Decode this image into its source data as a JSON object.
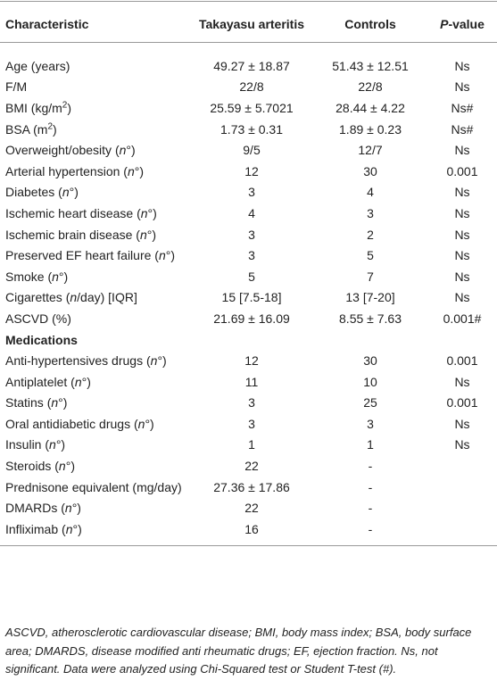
{
  "table": {
    "header": [
      [
        "Characteristic"
      ],
      [
        "Takayasu arteritis"
      ],
      [
        "Controls"
      ],
      [
        {
          "italic": "P"
        },
        "-value"
      ]
    ],
    "rows": [
      {
        "label": [
          "Age (years)"
        ],
        "ta": "49.27 ± 18.87",
        "controls": "51.43 ± 12.51",
        "p": "Ns"
      },
      {
        "label": [
          "F/M"
        ],
        "ta": "22/8",
        "controls": "22/8",
        "p": "Ns"
      },
      {
        "label": [
          "BMI (kg/m",
          {
            "sup": "2"
          },
          ")"
        ],
        "ta": "25.59 ± 5.7021",
        "controls": "28.44 ± 4.22",
        "p": "Ns#"
      },
      {
        "label": [
          "BSA (m",
          {
            "sup": "2"
          },
          ")"
        ],
        "ta": "1.73 ± 0.31",
        "controls": "1.89 ± 0.23",
        "p": "Ns#"
      },
      {
        "label": [
          "Overweight/obesity (",
          {
            "italic": "n"
          },
          "°)"
        ],
        "ta": "9/5",
        "controls": "12/7",
        "p": "Ns"
      },
      {
        "label": [
          "Arterial hypertension (",
          {
            "italic": "n"
          },
          "°)"
        ],
        "ta": "12",
        "controls": "30",
        "p": "0.001"
      },
      {
        "label": [
          "Diabetes (",
          {
            "italic": "n"
          },
          "°)"
        ],
        "ta": "3",
        "controls": "4",
        "p": "Ns"
      },
      {
        "label": [
          "Ischemic heart disease (",
          {
            "italic": "n"
          },
          "°)"
        ],
        "ta": "4",
        "controls": "3",
        "p": "Ns"
      },
      {
        "label": [
          "Ischemic brain disease (",
          {
            "italic": "n"
          },
          "°)"
        ],
        "ta": "3",
        "controls": "2",
        "p": "Ns"
      },
      {
        "label": [
          "Preserved EF heart failure (",
          {
            "italic": "n"
          },
          "°)"
        ],
        "ta": "3",
        "controls": "5",
        "p": "Ns"
      },
      {
        "label": [
          "Smoke (",
          {
            "italic": "n"
          },
          "°)"
        ],
        "ta": "5",
        "controls": "7",
        "p": "Ns"
      },
      {
        "label": [
          "Cigarettes (",
          {
            "italic": "n"
          },
          "/day) [IQR]"
        ],
        "ta": "15 [7.5-18]",
        "controls": "13 [7-20]",
        "p": "Ns"
      },
      {
        "label": [
          "ASCVD (%)"
        ],
        "ta": "21.69 ± 16.09",
        "controls": "8.55 ± 7.63",
        "p": "0.001#"
      },
      {
        "section": "Medications"
      },
      {
        "label": [
          "Anti-hypertensives drugs (",
          {
            "italic": "n"
          },
          "°)"
        ],
        "ta": "12",
        "controls": "30",
        "p": "0.001"
      },
      {
        "label": [
          "Antiplatelet (",
          {
            "italic": "n"
          },
          "°)"
        ],
        "ta": "11",
        "controls": "10",
        "p": "Ns"
      },
      {
        "label": [
          "Statins (",
          {
            "italic": "n"
          },
          "°)"
        ],
        "ta": "3",
        "controls": "25",
        "p": "0.001"
      },
      {
        "label": [
          "Oral antidiabetic drugs (",
          {
            "italic": "n"
          },
          "°)"
        ],
        "ta": "3",
        "controls": "3",
        "p": "Ns"
      },
      {
        "label": [
          "Insulin (",
          {
            "italic": "n"
          },
          "°)"
        ],
        "ta": "1",
        "controls": "1",
        "p": "Ns"
      },
      {
        "label": [
          "Steroids (",
          {
            "italic": "n"
          },
          "°)"
        ],
        "ta": "22",
        "controls": "-"
      },
      {
        "label": [
          "Prednisone equivalent (mg/day)"
        ],
        "ta": "27.36 ± 17.86",
        "controls": "-"
      },
      {
        "label": [
          "DMARDs (",
          {
            "italic": "n"
          },
          "°)"
        ],
        "ta": "22",
        "controls": "-"
      },
      {
        "label": [
          "Infliximab (",
          {
            "italic": "n"
          },
          "°)"
        ],
        "ta": "16",
        "controls": "-"
      }
    ],
    "footnote": "ASCVD, atherosclerotic cardiovascular disease; BMI, body mass index; BSA, body surface area; DMARDS, disease modified anti rheumatic drugs; EF, ejection fraction. Ns, not significant. Data were analyzed using Chi-Squared test or Student T-test (#)."
  }
}
